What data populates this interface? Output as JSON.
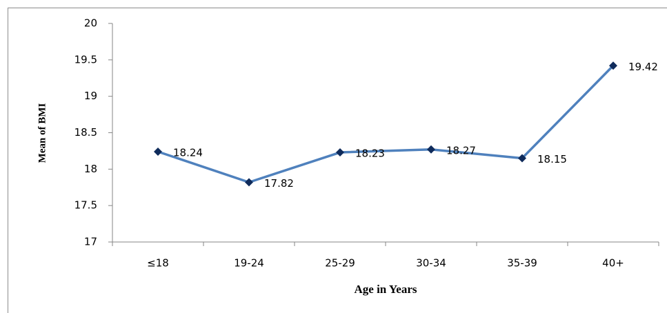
{
  "chart_data": {
    "type": "line",
    "xlabel": "Age in Years",
    "ylabel": "Mean of BMI",
    "categories": [
      "≤18",
      "19-24",
      "25-29",
      "30-34",
      "35-39",
      "40+"
    ],
    "series": [
      {
        "name": "Mean of BMI",
        "color": "#4f81bd",
        "marker_color": "#0f2b5b",
        "values": [
          18.24,
          17.82,
          18.23,
          18.27,
          18.15,
          19.42
        ]
      }
    ],
    "ylim": [
      17,
      20
    ],
    "yticks": [
      17,
      17.5,
      18,
      18.5,
      19,
      19.5,
      20
    ],
    "grid": false
  }
}
